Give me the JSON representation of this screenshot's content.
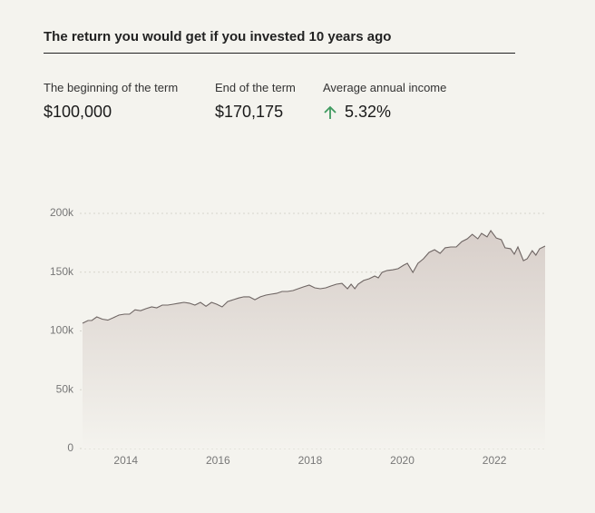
{
  "title": "The return you would get if you invested 10 years ago",
  "stats": [
    {
      "label": "The beginning of the term",
      "value": "$100,000"
    },
    {
      "label": "End of the term",
      "value": "$170,175"
    },
    {
      "label": "Average annual income",
      "value": "5.32%"
    }
  ],
  "chart_data": {
    "type": "area",
    "color": "#6e6563",
    "grid": true,
    "x": [
      2013.06,
      2013.18,
      2013.26,
      2013.37,
      2013.49,
      2013.61,
      2013.73,
      2013.85,
      2013.97,
      2014.08,
      2014.2,
      2014.32,
      2014.44,
      2014.56,
      2014.67,
      2014.79,
      2014.91,
      2015.03,
      2015.15,
      2015.26,
      2015.38,
      2015.5,
      2015.62,
      2015.74,
      2015.86,
      2015.97,
      2016.09,
      2016.21,
      2016.33,
      2016.45,
      2016.56,
      2016.68,
      2016.8,
      2016.92,
      2017.04,
      2017.15,
      2017.27,
      2017.39,
      2017.51,
      2017.63,
      2017.74,
      2017.86,
      2017.98,
      2018.1,
      2018.22,
      2018.34,
      2018.45,
      2018.57,
      2018.69,
      2018.81,
      2018.89,
      2018.97,
      2019.04,
      2019.16,
      2019.28,
      2019.4,
      2019.48,
      2019.56,
      2019.67,
      2019.79,
      2019.91,
      2020.03,
      2020.11,
      2020.23,
      2020.34,
      2020.46,
      2020.58,
      2020.7,
      2020.82,
      2020.93,
      2021.05,
      2021.17,
      2021.29,
      2021.41,
      2021.52,
      2021.64,
      2021.72,
      2021.84,
      2021.92,
      2022.04,
      2022.15,
      2022.23,
      2022.35,
      2022.43,
      2022.51,
      2022.63,
      2022.71,
      2022.82,
      2022.9,
      2022.98,
      2023.1
    ],
    "values": [
      106600,
      108900,
      108900,
      112000,
      110000,
      109200,
      111300,
      113500,
      114300,
      114300,
      118000,
      117200,
      119000,
      120500,
      119700,
      122000,
      122000,
      122800,
      123600,
      124300,
      123600,
      122000,
      124300,
      121000,
      124300,
      122800,
      120500,
      125000,
      126600,
      128000,
      129000,
      129000,
      126600,
      129000,
      130500,
      131300,
      132000,
      133600,
      133600,
      134400,
      135900,
      137500,
      139000,
      136700,
      135900,
      136700,
      138200,
      139800,
      140500,
      135900,
      139800,
      135900,
      139800,
      142900,
      144400,
      146700,
      145200,
      149800,
      151400,
      152000,
      153000,
      156000,
      157500,
      149800,
      157500,
      161400,
      166800,
      169100,
      166000,
      170700,
      171400,
      171400,
      176000,
      178400,
      182200,
      178400,
      183000,
      180000,
      185300,
      179000,
      177600,
      170700,
      170000,
      165300,
      171400,
      159800,
      161400,
      168300,
      164500,
      169900,
      172200
    ],
    "xlim": [
      2013.06,
      2023.1
    ],
    "xticks": [
      2014,
      2016,
      2018,
      2020,
      2022
    ],
    "ylim": [
      0,
      200000
    ],
    "yticks": [
      0,
      {
        "value": 50000,
        "label": "50k"
      },
      {
        "value": 100000,
        "label": "100k"
      },
      {
        "value": 150000,
        "label": "150k"
      },
      {
        "value": 200000,
        "label": "200k"
      }
    ]
  }
}
